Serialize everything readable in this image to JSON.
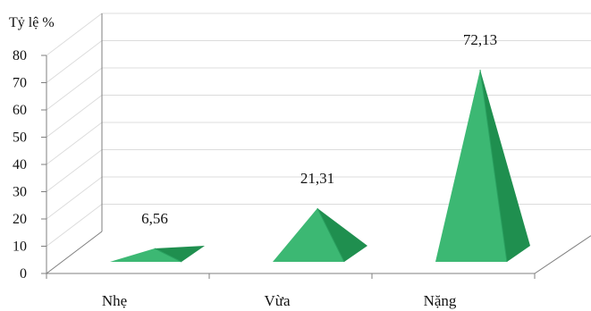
{
  "chart_data": {
    "type": "bar",
    "shape": "3d-pyramid",
    "ylabel": "Tỷ lệ %",
    "yticks": [
      "0",
      "10",
      "20",
      "30",
      "40",
      "50",
      "60",
      "70",
      "80"
    ],
    "ylim": [
      0,
      80
    ],
    "categories": [
      "Nhẹ",
      "Vừa",
      "Nặng"
    ],
    "values": [
      6.56,
      21.31,
      72.13
    ],
    "data_labels": [
      "6,56",
      "21,31",
      "72,13"
    ],
    "grid": true,
    "legend": "none"
  },
  "colors": {
    "front": "#3cb873",
    "side": "#1f8f4f",
    "edge": "#2aa060"
  }
}
